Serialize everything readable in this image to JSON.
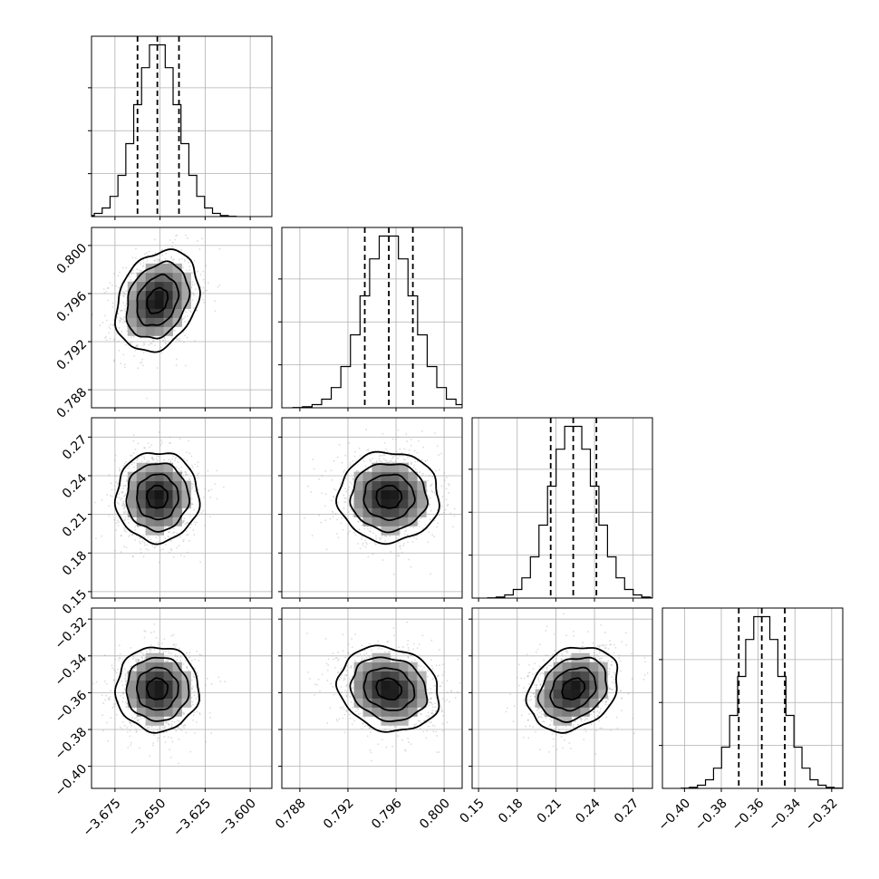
{
  "chart_data": {
    "type": "corner",
    "title": "",
    "grid": true,
    "colors": {
      "axes": "#000000",
      "grid": "#b0b0b0",
      "points": "#9a9a9a",
      "density_dark": "#000000"
    },
    "params": [
      {
        "id": "p0",
        "range": [
          -3.688,
          -3.588
        ],
        "ticks": [
          {
            "v": -3.675,
            "label": "−3.675"
          },
          {
            "v": -3.65,
            "label": "−3.650"
          },
          {
            "v": -3.625,
            "label": "−3.625"
          },
          {
            "v": -3.6,
            "label": "−3.600"
          }
        ],
        "mean": -3.6515,
        "sd": 0.0115,
        "quantiles": [
          -3.6625,
          -3.6515,
          -3.6395
        ]
      },
      {
        "id": "p1",
        "range": [
          0.7865,
          0.8015
        ],
        "ticks": [
          {
            "v": 0.788,
            "label": "0.788"
          },
          {
            "v": 0.792,
            "label": "0.792"
          },
          {
            "v": 0.796,
            "label": "0.796"
          },
          {
            "v": 0.8,
            "label": "0.800"
          }
        ],
        "mean": 0.7954,
        "sd": 0.0021,
        "quantiles": [
          0.7934,
          0.7954,
          0.7974
        ]
      },
      {
        "id": "p2",
        "range": [
          0.145,
          0.285
        ],
        "ticks": [
          {
            "v": 0.15,
            "label": "0.15"
          },
          {
            "v": 0.18,
            "label": "0.18"
          },
          {
            "v": 0.21,
            "label": "0.21"
          },
          {
            "v": 0.24,
            "label": "0.24"
          },
          {
            "v": 0.27,
            "label": "0.27"
          }
        ],
        "mean": 0.2235,
        "sd": 0.0175,
        "quantiles": [
          0.206,
          0.2235,
          0.2415
        ]
      },
      {
        "id": "p3",
        "range": [
          -0.412,
          -0.314
        ],
        "ticks": [
          {
            "v": -0.4,
            "label": "−0.40"
          },
          {
            "v": -0.38,
            "label": "−0.38"
          },
          {
            "v": -0.36,
            "label": "−0.36"
          },
          {
            "v": -0.34,
            "label": "−0.34"
          },
          {
            "v": -0.32,
            "label": "−0.32"
          }
        ],
        "mean": -0.358,
        "sd": 0.0115,
        "quantiles": [
          -0.3705,
          -0.358,
          -0.3455
        ]
      }
    ],
    "correlations": [
      {
        "x": 0,
        "y": 1,
        "rho": 0.25
      },
      {
        "x": 0,
        "y": 2,
        "rho": 0.0
      },
      {
        "x": 1,
        "y": 2,
        "rho": 0.0
      },
      {
        "x": 0,
        "y": 3,
        "rho": 0.0
      },
      {
        "x": 1,
        "y": 3,
        "rho": -0.15
      },
      {
        "x": 2,
        "y": 3,
        "rho": 0.25
      }
    ],
    "contour_levels_sigma": [
      0.5,
      1.0,
      1.5,
      2.0
    ],
    "hist_bins": 20
  }
}
